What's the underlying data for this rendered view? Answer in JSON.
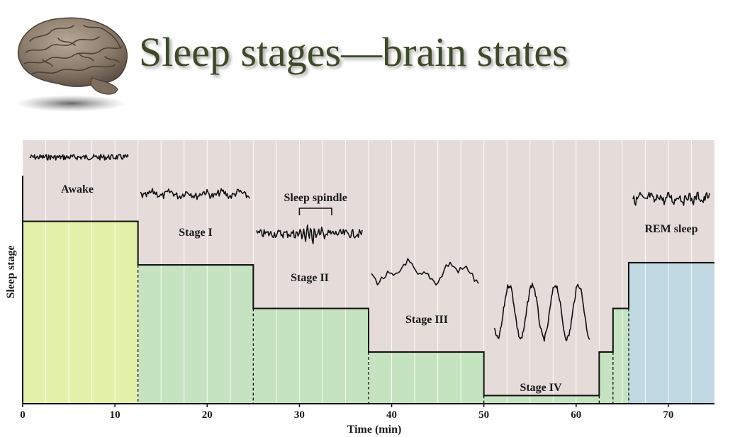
{
  "title": "Sleep stages—brain states",
  "icons": {
    "brain": "brain-icon"
  },
  "colors": {
    "title": "#3d4a27",
    "background": "#e5dcda",
    "awake": "#e3f2a9",
    "stage": "#c6e3c1",
    "rem": "#c0d9e2",
    "trace": "#111111"
  },
  "chart_data": {
    "type": "line",
    "title": "",
    "xlabel": "Time (min)",
    "ylabel": "Sleep stage",
    "xlim": [
      0,
      75
    ],
    "xticks": [
      0,
      10,
      20,
      30,
      40,
      50,
      60,
      70
    ],
    "xtick_labels": [
      "0",
      "10",
      "20",
      "30",
      "40",
      "50",
      "60",
      "70"
    ],
    "stages": [
      {
        "label": "Awake",
        "start": 0,
        "end": 12.5,
        "level": 5
      },
      {
        "label": "Stage I",
        "start": 12.5,
        "end": 25,
        "level": 4
      },
      {
        "label": "Stage II",
        "start": 25,
        "end": 37.5,
        "level": 3
      },
      {
        "label": "Stage III",
        "start": 37.5,
        "end": 50,
        "level": 2
      },
      {
        "label": "Stage IV",
        "start": 50,
        "end": 62.5,
        "level": 1
      },
      {
        "label": "",
        "start": 62.5,
        "end": 64,
        "level": 2
      },
      {
        "label": "",
        "start": 64,
        "end": 65.7,
        "level": 3
      },
      {
        "label": "REM sleep",
        "start": 65.7,
        "end": 75,
        "level": 4.05
      }
    ],
    "annotations": [
      {
        "text": "Sleep spindle",
        "x_start": 30,
        "x_end": 33.5
      }
    ],
    "grid": true
  }
}
